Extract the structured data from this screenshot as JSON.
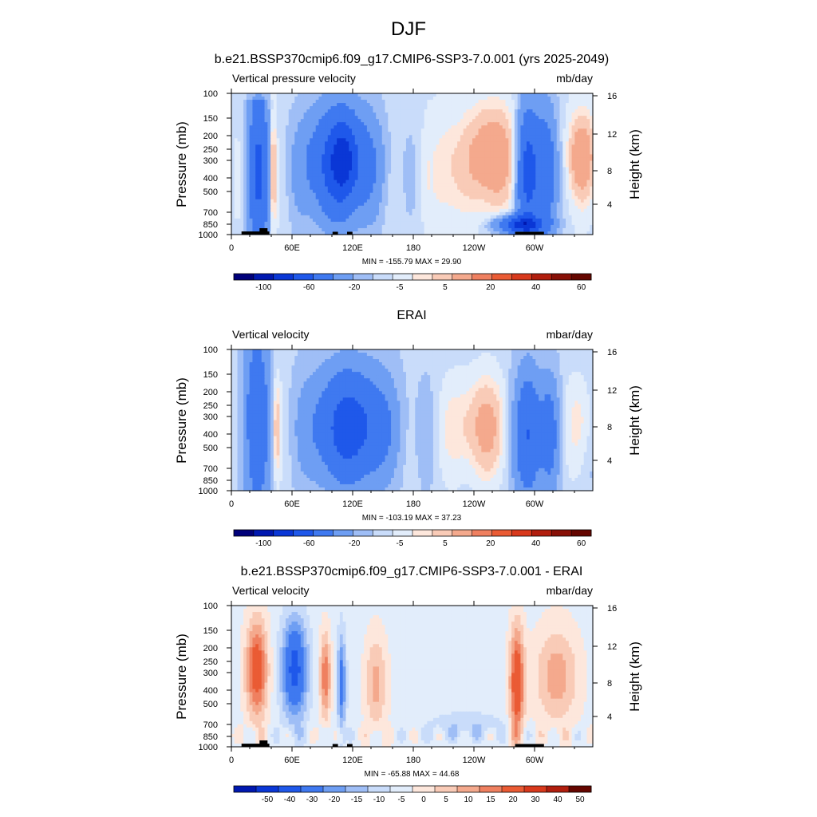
{
  "figure": {
    "title": "DJF"
  },
  "palettes": {
    "full": [
      "#00007a",
      "#0018b0",
      "#0a37d6",
      "#1f58ea",
      "#3f79f0",
      "#6e9ef3",
      "#9fbef6",
      "#c9dcfa",
      "#e2edfb",
      "#fde7dc",
      "#f9cbb7",
      "#f4a98d",
      "#ef8060",
      "#ea5b34",
      "#d8391c",
      "#b11e0e",
      "#881007",
      "#650600"
    ],
    "diff": [
      "#0018b0",
      "#0a37d6",
      "#1f58ea",
      "#3f79f0",
      "#6e9ef3",
      "#9fbef6",
      "#c9dcfa",
      "#e2edfb",
      "#fde7dc",
      "#f9cbb7",
      "#f4a98d",
      "#ef8060",
      "#ea5b34",
      "#d8391c",
      "#b11e0e",
      "#650600"
    ]
  },
  "chart_data": [
    {
      "type": "heatmap",
      "title": "b.e21.BSSP370cmip6.f09_g17.CMIP6-SSP3-7.0.001 (yrs 2025-2049)",
      "variable": "Vertical pressure velocity",
      "units": "mb/day",
      "ylabel": "Pressure (mb)",
      "ylabel_right": "Height (km)",
      "xticks": [
        "0",
        "60E",
        "120E",
        "180",
        "120W",
        "60W"
      ],
      "yticks": [
        "100",
        "150",
        "200",
        "250",
        "300",
        "400",
        "500",
        "700",
        "850",
        "1000"
      ],
      "yticks_right": [
        "16",
        "12",
        "8",
        "4"
      ],
      "minmax": "MIN = -155.79   MAX =  29.90",
      "colorbar_labels": [
        "-100",
        "-60",
        "-20",
        "-5",
        "5",
        "20",
        "40",
        "60"
      ],
      "palette": "full",
      "field": "model",
      "topography": true
    },
    {
      "type": "heatmap",
      "title": "ERAI",
      "variable": "Vertical velocity",
      "units": "mbar/day",
      "ylabel": "Pressure (mb)",
      "ylabel_right": "Height (km)",
      "xticks": [
        "0",
        "60E",
        "120E",
        "180",
        "120W",
        "60W"
      ],
      "yticks": [
        "100",
        "150",
        "200",
        "250",
        "300",
        "400",
        "500",
        "700",
        "850",
        "1000"
      ],
      "yticks_right": [
        "16",
        "12",
        "8",
        "4"
      ],
      "minmax": "MIN = -103.19   MAX =  37.23",
      "colorbar_labels": [
        "-100",
        "-60",
        "-20",
        "-5",
        "5",
        "20",
        "40",
        "60"
      ],
      "palette": "full",
      "field": "obs",
      "topography": false
    },
    {
      "type": "heatmap",
      "title": "b.e21.BSSP370cmip6.f09_g17.CMIP6-SSP3-7.0.001 - ERAI",
      "variable": "Vertical velocity",
      "units": "mbar/day",
      "ylabel": "Pressure (mb)",
      "ylabel_right": "Height (km)",
      "xticks": [
        "0",
        "60E",
        "120E",
        "180",
        "120W",
        "60W"
      ],
      "yticks": [
        "100",
        "150",
        "200",
        "250",
        "300",
        "400",
        "500",
        "700",
        "850",
        "1000"
      ],
      "yticks_right": [
        "16",
        "12",
        "8",
        "4"
      ],
      "minmax": "MIN = -65.88   MAX =  44.68",
      "colorbar_labels": [
        "-50",
        "-40",
        "-30",
        "-20",
        "-15",
        "-10",
        "-5",
        "0",
        "5",
        "10",
        "15",
        "20",
        "30",
        "40",
        "50"
      ],
      "palette": "diff",
      "field": "diff",
      "topography": true
    }
  ]
}
